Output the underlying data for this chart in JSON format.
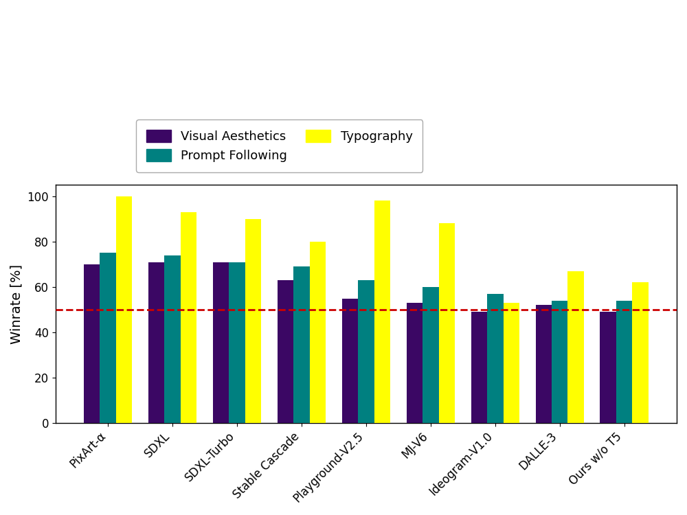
{
  "categories": [
    "PixArt-α",
    "SDXL",
    "SDXL-Turbo",
    "Stable Cascade",
    "Playground-V2.5",
    "MJ-V6",
    "Ideogram-V1.0",
    "DALLE-3",
    "Ours w/o T5"
  ],
  "visual_aesthetics": [
    70,
    71,
    71,
    63,
    55,
    53,
    49,
    52,
    49
  ],
  "prompt_following": [
    75,
    74,
    71,
    69,
    63,
    60,
    57,
    54,
    54
  ],
  "typography": [
    100,
    93,
    90,
    80,
    98,
    88,
    53,
    67,
    62
  ],
  "color_visual": "#3b0764",
  "color_prompt": "#008080",
  "color_typography": "#ffff00",
  "ylabel": "Winrate [%]",
  "ylim": [
    0,
    105
  ],
  "yticks": [
    0,
    20,
    40,
    60,
    80,
    100
  ],
  "dashed_line_y": 50,
  "dashed_line_color": "#cc0000",
  "legend_labels": [
    "Visual Aesthetics",
    "Prompt Following",
    "Typography"
  ],
  "figsize": [
    10.0,
    7.5
  ],
  "dpi": 100,
  "bg_color": "#ffffff",
  "bar_width": 0.25
}
